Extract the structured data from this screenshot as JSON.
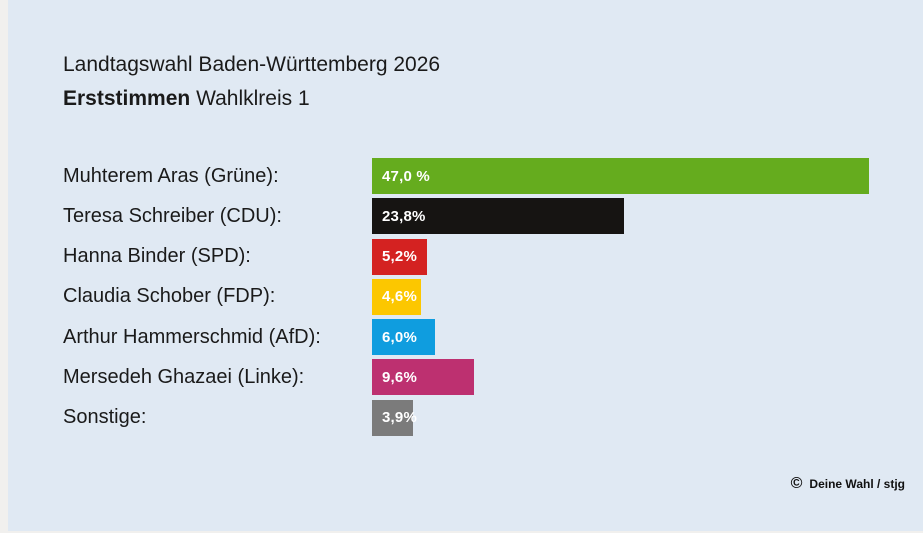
{
  "header": {
    "title": "Landtagswahl Baden-Württemberg 2026",
    "subtitle_bold": "Erststimmen",
    "subtitle_regular": "Wahlklreis 1"
  },
  "footer": {
    "copyright_symbol": "©",
    "credit": "Deine Wahl / stjg"
  },
  "colors": {
    "background": "#e0e9f3",
    "edge": "#f1f0ee",
    "text": "#1a1a1a",
    "bar_value_text": "#ffffff"
  },
  "chart_data": {
    "type": "bar",
    "orientation": "horizontal",
    "title": "Landtagswahl Baden-Württemberg 2026",
    "subtitle": "Erststimmen Wahlklreis 1",
    "unit": "%",
    "grid": false,
    "legend": "none",
    "axis_labels": "none",
    "scale_max": 47.0,
    "categories": [
      "Muhterem Aras (Grüne):",
      "Teresa Schreiber (CDU):",
      "Hanna Binder (SPD):",
      "Claudia Schober (FDP):",
      "Arthur Hammerschmid (AfD):",
      "Mersedeh Ghazaei (Linke):",
      "Sonstige:"
    ],
    "parties": [
      "Grüne",
      "CDU",
      "SPD",
      "FDP",
      "AfD",
      "Linke",
      "Sonstige"
    ],
    "values": [
      47.0,
      23.8,
      5.2,
      4.6,
      6.0,
      9.6,
      3.9
    ],
    "display_values": [
      "47,0 %",
      "23,8%",
      "5,2%",
      "4,6%",
      "6,0%",
      "9,6%",
      "3,9%"
    ],
    "bar_colors": [
      "#65ac1e",
      "#161412",
      "#d42221",
      "#fcc700",
      "#0f9ddf",
      "#bd3070",
      "#7b7b7b"
    ]
  }
}
